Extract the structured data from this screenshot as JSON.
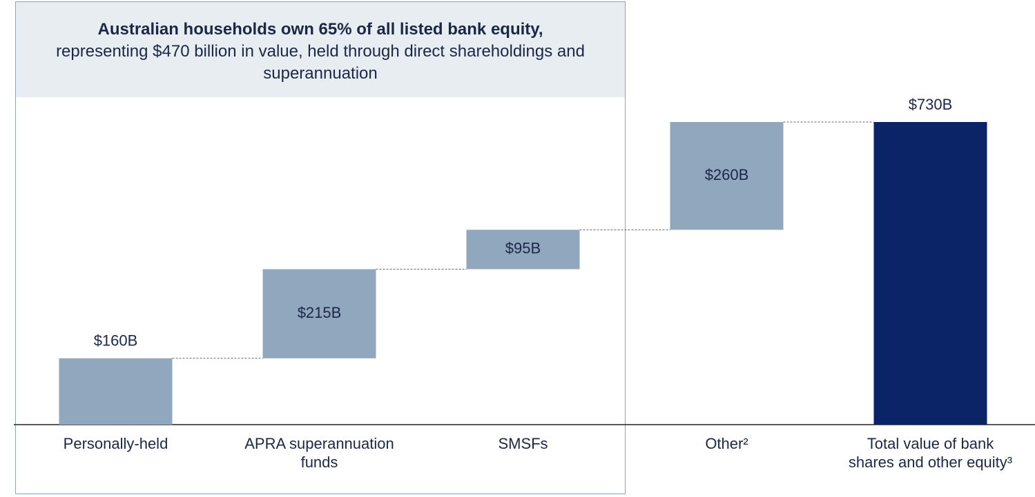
{
  "chart_data": {
    "type": "waterfall",
    "annotation": {
      "bold": "Australian households own 65% of all listed bank equity,",
      "text": "representing $470 billion in value, held through direct shareholdings and superannuation"
    },
    "categories": [
      "Personally-held",
      "APRA superannuation funds",
      "SMSFs",
      "Other²",
      "Total value of bank shares and other equity³"
    ],
    "values": [
      160,
      215,
      95,
      260,
      730
    ],
    "value_labels": [
      "$160B",
      "$215B",
      "$95B",
      "$260B",
      "$730B"
    ],
    "measure": [
      "relative",
      "relative",
      "relative",
      "relative",
      "total"
    ],
    "colors": [
      "#91a7bd",
      "#91a7bd",
      "#91a7bd",
      "#91a7bd",
      "#0b2468"
    ]
  }
}
